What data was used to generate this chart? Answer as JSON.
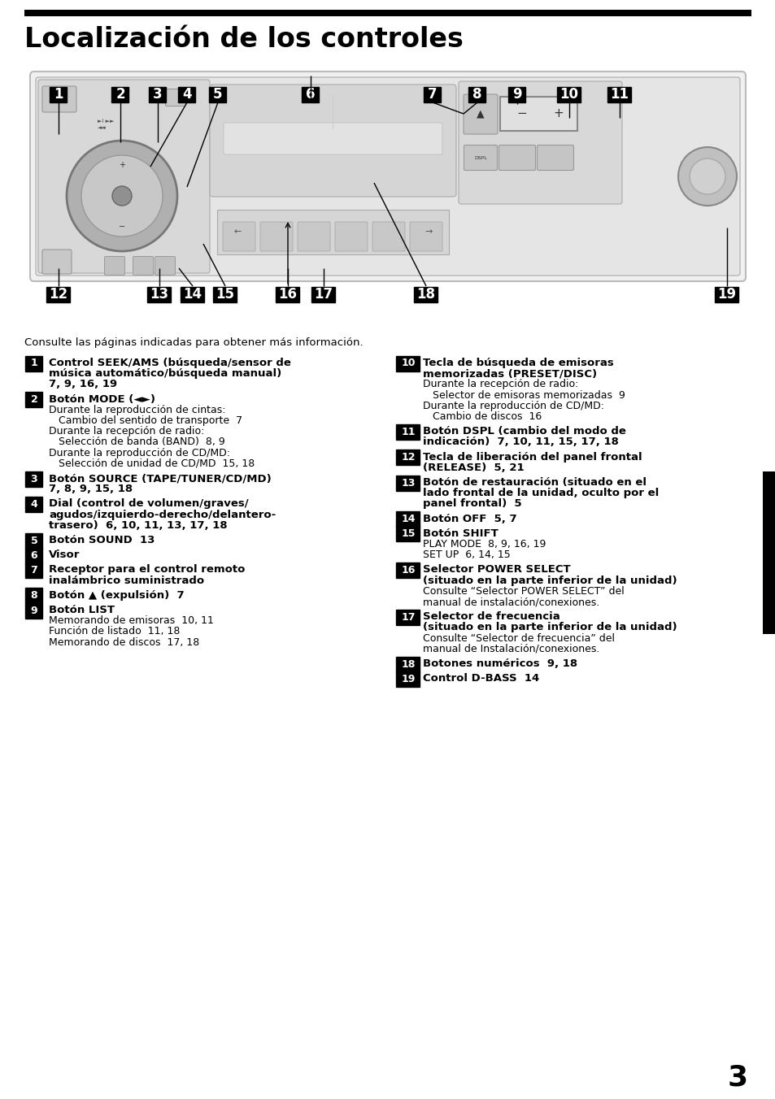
{
  "title": "Localización de los controles",
  "bg_color": "#ffffff",
  "page_number": "3",
  "intro_line": "Consulte las páginas indicadas para obtener más información.",
  "left_items": [
    {
      "num": "1",
      "lines": [
        {
          "text": "Control SEEK/AMS (búsqueda/sensor de",
          "bold": true,
          "indent": 0
        },
        {
          "text": "música automático/búsqueda manual)",
          "bold": true,
          "indent": 0
        },
        {
          "text": "7, 9, 16, 19",
          "bold": true,
          "indent": 0
        }
      ]
    },
    {
      "num": "2",
      "lines": [
        {
          "text": "Botón MODE (◄►)",
          "bold": true,
          "indent": 0
        },
        {
          "text": "Durante la reproducción de cintas:",
          "bold": false,
          "indent": 0
        },
        {
          "text": "   Cambio del sentido de transporte  7",
          "bold": false,
          "indent": 1
        },
        {
          "text": "Durante la recepción de radio:",
          "bold": false,
          "indent": 0
        },
        {
          "text": "   Selección de banda (BAND)  8, 9",
          "bold": false,
          "indent": 1
        },
        {
          "text": "Durante la reproducción de CD/MD:",
          "bold": false,
          "indent": 0
        },
        {
          "text": "   Selección de unidad de CD/MD  15, 18",
          "bold": false,
          "indent": 1
        }
      ]
    },
    {
      "num": "3",
      "lines": [
        {
          "text": "Botón SOURCE (TAPE/TUNER/CD/MD)",
          "bold": true,
          "indent": 0
        },
        {
          "text": "7, 8, 9, 15, 18",
          "bold": true,
          "indent": 0
        }
      ]
    },
    {
      "num": "4",
      "lines": [
        {
          "text": "Dial (control de volumen/graves/",
          "bold": true,
          "indent": 0
        },
        {
          "text": "agudos/izquierdo-derecho/delantero-",
          "bold": true,
          "indent": 0
        },
        {
          "text": "trasero)  6, 10, 11, 13, 17, 18",
          "bold": true,
          "indent": 0
        }
      ]
    },
    {
      "num": "5",
      "lines": [
        {
          "text": "Botón SOUND  13",
          "bold": true,
          "indent": 0
        }
      ]
    },
    {
      "num": "6",
      "lines": [
        {
          "text": "Visor",
          "bold": true,
          "indent": 0
        }
      ]
    },
    {
      "num": "7",
      "lines": [
        {
          "text": "Receptor para el control remoto",
          "bold": true,
          "indent": 0
        },
        {
          "text": "inalámbrico suministrado",
          "bold": true,
          "indent": 0
        }
      ]
    },
    {
      "num": "8",
      "lines": [
        {
          "text": "Botón ▲ (expulsión)  7",
          "bold": true,
          "indent": 0
        }
      ]
    },
    {
      "num": "9",
      "lines": [
        {
          "text": "Botón LIST",
          "bold": true,
          "indent": 0
        },
        {
          "text": "Memorando de emisoras  10, 11",
          "bold": false,
          "indent": 0
        },
        {
          "text": "Función de listado  11, 18",
          "bold": false,
          "indent": 0
        },
        {
          "text": "Memorando de discos  17, 18",
          "bold": false,
          "indent": 0
        }
      ]
    }
  ],
  "right_items": [
    {
      "num": "10",
      "lines": [
        {
          "text": "Tecla de búsqueda de emisoras",
          "bold": true,
          "indent": 0
        },
        {
          "text": "memorizadas (PRESET/DISC)",
          "bold": true,
          "indent": 0
        },
        {
          "text": "Durante la recepción de radio:",
          "bold": false,
          "indent": 0
        },
        {
          "text": "   Selector de emisoras memorizadas  9",
          "bold": false,
          "indent": 1
        },
        {
          "text": "Durante la reproducción de CD/MD:",
          "bold": false,
          "indent": 0
        },
        {
          "text": "   Cambio de discos  16",
          "bold": false,
          "indent": 1
        }
      ]
    },
    {
      "num": "11",
      "lines": [
        {
          "text": "Botón DSPL (cambio del modo de",
          "bold": true,
          "indent": 0
        },
        {
          "text": "indicación)  7, 10, 11, 15, 17, 18",
          "bold": true,
          "indent": 0
        }
      ]
    },
    {
      "num": "12",
      "lines": [
        {
          "text": "Tecla de liberación del panel frontal",
          "bold": true,
          "indent": 0
        },
        {
          "text": "(RELEASE)  5, 21",
          "bold": true,
          "indent": 0
        }
      ]
    },
    {
      "num": "13",
      "lines": [
        {
          "text": "Botón de restauración (situado en el",
          "bold": true,
          "indent": 0
        },
        {
          "text": "lado frontal de la unidad, oculto por el",
          "bold": true,
          "indent": 0
        },
        {
          "text": "panel frontal)  5",
          "bold": true,
          "indent": 0
        }
      ]
    },
    {
      "num": "14",
      "lines": [
        {
          "text": "Botón OFF  5, 7",
          "bold": true,
          "indent": 0
        }
      ]
    },
    {
      "num": "15",
      "lines": [
        {
          "text": "Botón SHIFT",
          "bold": true,
          "indent": 0
        },
        {
          "text": "PLAY MODE  8, 9, 16, 19",
          "bold": false,
          "indent": 0
        },
        {
          "text": "SET UP  6, 14, 15",
          "bold": false,
          "indent": 0
        }
      ]
    },
    {
      "num": "16",
      "lines": [
        {
          "text": "Selector POWER SELECT",
          "bold": true,
          "indent": 0
        },
        {
          "text": "(situado en la parte inferior de la unidad)",
          "bold": true,
          "indent": 0
        },
        {
          "text": "Consulte “Selector POWER SELECT” del",
          "bold": false,
          "indent": 0
        },
        {
          "text": "manual de instalación/conexiones.",
          "bold": false,
          "indent": 0
        }
      ]
    },
    {
      "num": "17",
      "lines": [
        {
          "text": "Selector de frecuencia",
          "bold": true,
          "indent": 0
        },
        {
          "text": "(situado en la parte inferior de la unidad)",
          "bold": true,
          "indent": 0
        },
        {
          "text": "Consulte “Selector de frecuencia” del",
          "bold": false,
          "indent": 0
        },
        {
          "text": "manual de Instalación/conexiones.",
          "bold": false,
          "indent": 0
        }
      ]
    },
    {
      "num": "18",
      "lines": [
        {
          "text": "Botones numéricos  9, 18",
          "bold": true,
          "indent": 0
        }
      ]
    },
    {
      "num": "19",
      "lines": [
        {
          "text": "Control D-BASS  14",
          "bold": true,
          "indent": 0
        }
      ]
    }
  ]
}
